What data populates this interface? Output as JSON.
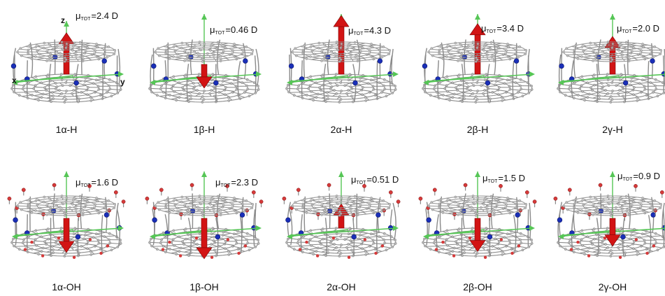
{
  "mu_symbol": "μ",
  "mu_subscript": "TOT",
  "axis_labels": {
    "x": "x",
    "y": "y",
    "z": "z"
  },
  "colors": {
    "carbon": "#9a9a9a",
    "nitrogen": "#1a2fb8",
    "oxygen": "#d63a3a",
    "dipole_arrow": "#d21414",
    "axis_green": "#56c656"
  },
  "rows": [
    {
      "id": "H",
      "molecules": [
        {
          "label": "1α-H",
          "dipole_value": "=2.4 D",
          "dipole_direction": "up",
          "dipole_magnitude": 2.4
        },
        {
          "label": "1β-H",
          "dipole_value": "=0.46 D",
          "dipole_direction": "down",
          "dipole_magnitude": 0.46
        },
        {
          "label": "2α-H",
          "dipole_value": "=4.3 D",
          "dipole_direction": "up",
          "dipole_magnitude": 4.3
        },
        {
          "label": "2β-H",
          "dipole_value": "=3.4 D",
          "dipole_direction": "up",
          "dipole_magnitude": 3.4
        },
        {
          "label": "2γ-H",
          "dipole_value": "=2.0 D",
          "dipole_direction": "up",
          "dipole_magnitude": 2.0
        }
      ]
    },
    {
      "id": "OH",
      "molecules": [
        {
          "label": "1α-OH",
          "dipole_value": "=1.6 D",
          "dipole_direction": "down",
          "dipole_magnitude": 1.6
        },
        {
          "label": "1β-OH",
          "dipole_value": "=2.3 D",
          "dipole_direction": "down",
          "dipole_magnitude": 2.3
        },
        {
          "label": "2α-OH",
          "dipole_value": "=0.51 D",
          "dipole_direction": "up",
          "dipole_magnitude": 0.51
        },
        {
          "label": "2β-OH",
          "dipole_value": "=1.5 D",
          "dipole_direction": "down",
          "dipole_magnitude": 1.5
        },
        {
          "label": "2γ-OH",
          "dipole_value": "=0.9 D",
          "dipole_direction": "down",
          "dipole_magnitude": 0.9
        }
      ]
    }
  ]
}
